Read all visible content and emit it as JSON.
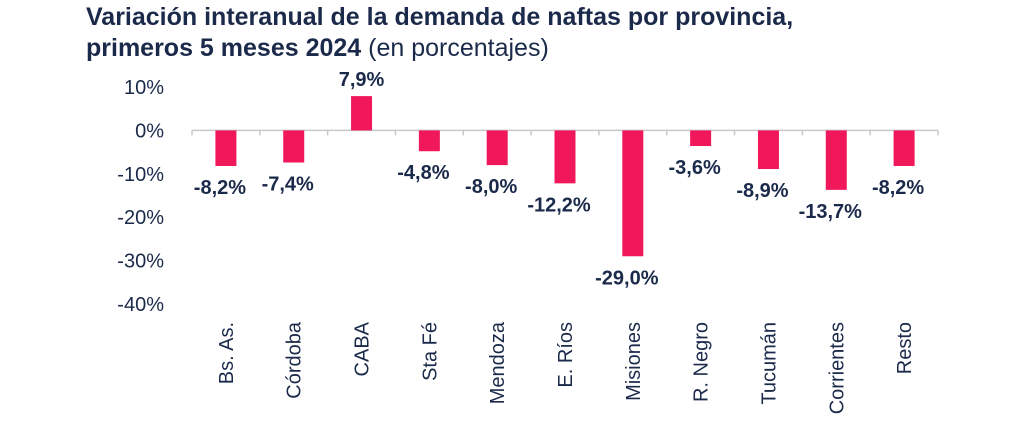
{
  "header": {
    "title_line1": "Variación interanual de la demanda de naftas por provincia,",
    "title_line2_bold": "primeros 5 meses 2024",
    "title_line2_light": " (en porcentajes)"
  },
  "chart_data": {
    "type": "bar",
    "title": "Variación interanual de la demanda de naftas por provincia, primeros 5 meses 2024 (en porcentajes)",
    "categories": [
      "Bs. As.",
      "Córdoba",
      "CABA",
      "Sta Fé",
      "Mendoza",
      "E. Ríos",
      "Misiones",
      "R. Negro",
      "Tucumán",
      "Corrientes",
      "Resto"
    ],
    "values": [
      -8.2,
      -7.4,
      7.9,
      -4.8,
      -8.0,
      -12.2,
      -29.0,
      -3.6,
      -8.9,
      -13.7,
      -8.2
    ],
    "data_labels": [
      "-8,2%",
      "-7,4%",
      "7,9%",
      "-4,8%",
      "-8,0%",
      "-12,2%",
      "-29,0%",
      "-3,6%",
      "-8,9%",
      "-13,7%",
      "-8,2%"
    ],
    "y_ticks": [
      10,
      0,
      -10,
      -20,
      -30,
      -40
    ],
    "y_tick_labels": [
      "10%",
      "0%",
      "-10%",
      "-20%",
      "-30%",
      "-40%"
    ],
    "ylim": [
      -40,
      10
    ],
    "grid": false,
    "bar_color": "#f0185a",
    "text_color": "#1b2a4a",
    "axis_color": "#c8c8c8"
  }
}
